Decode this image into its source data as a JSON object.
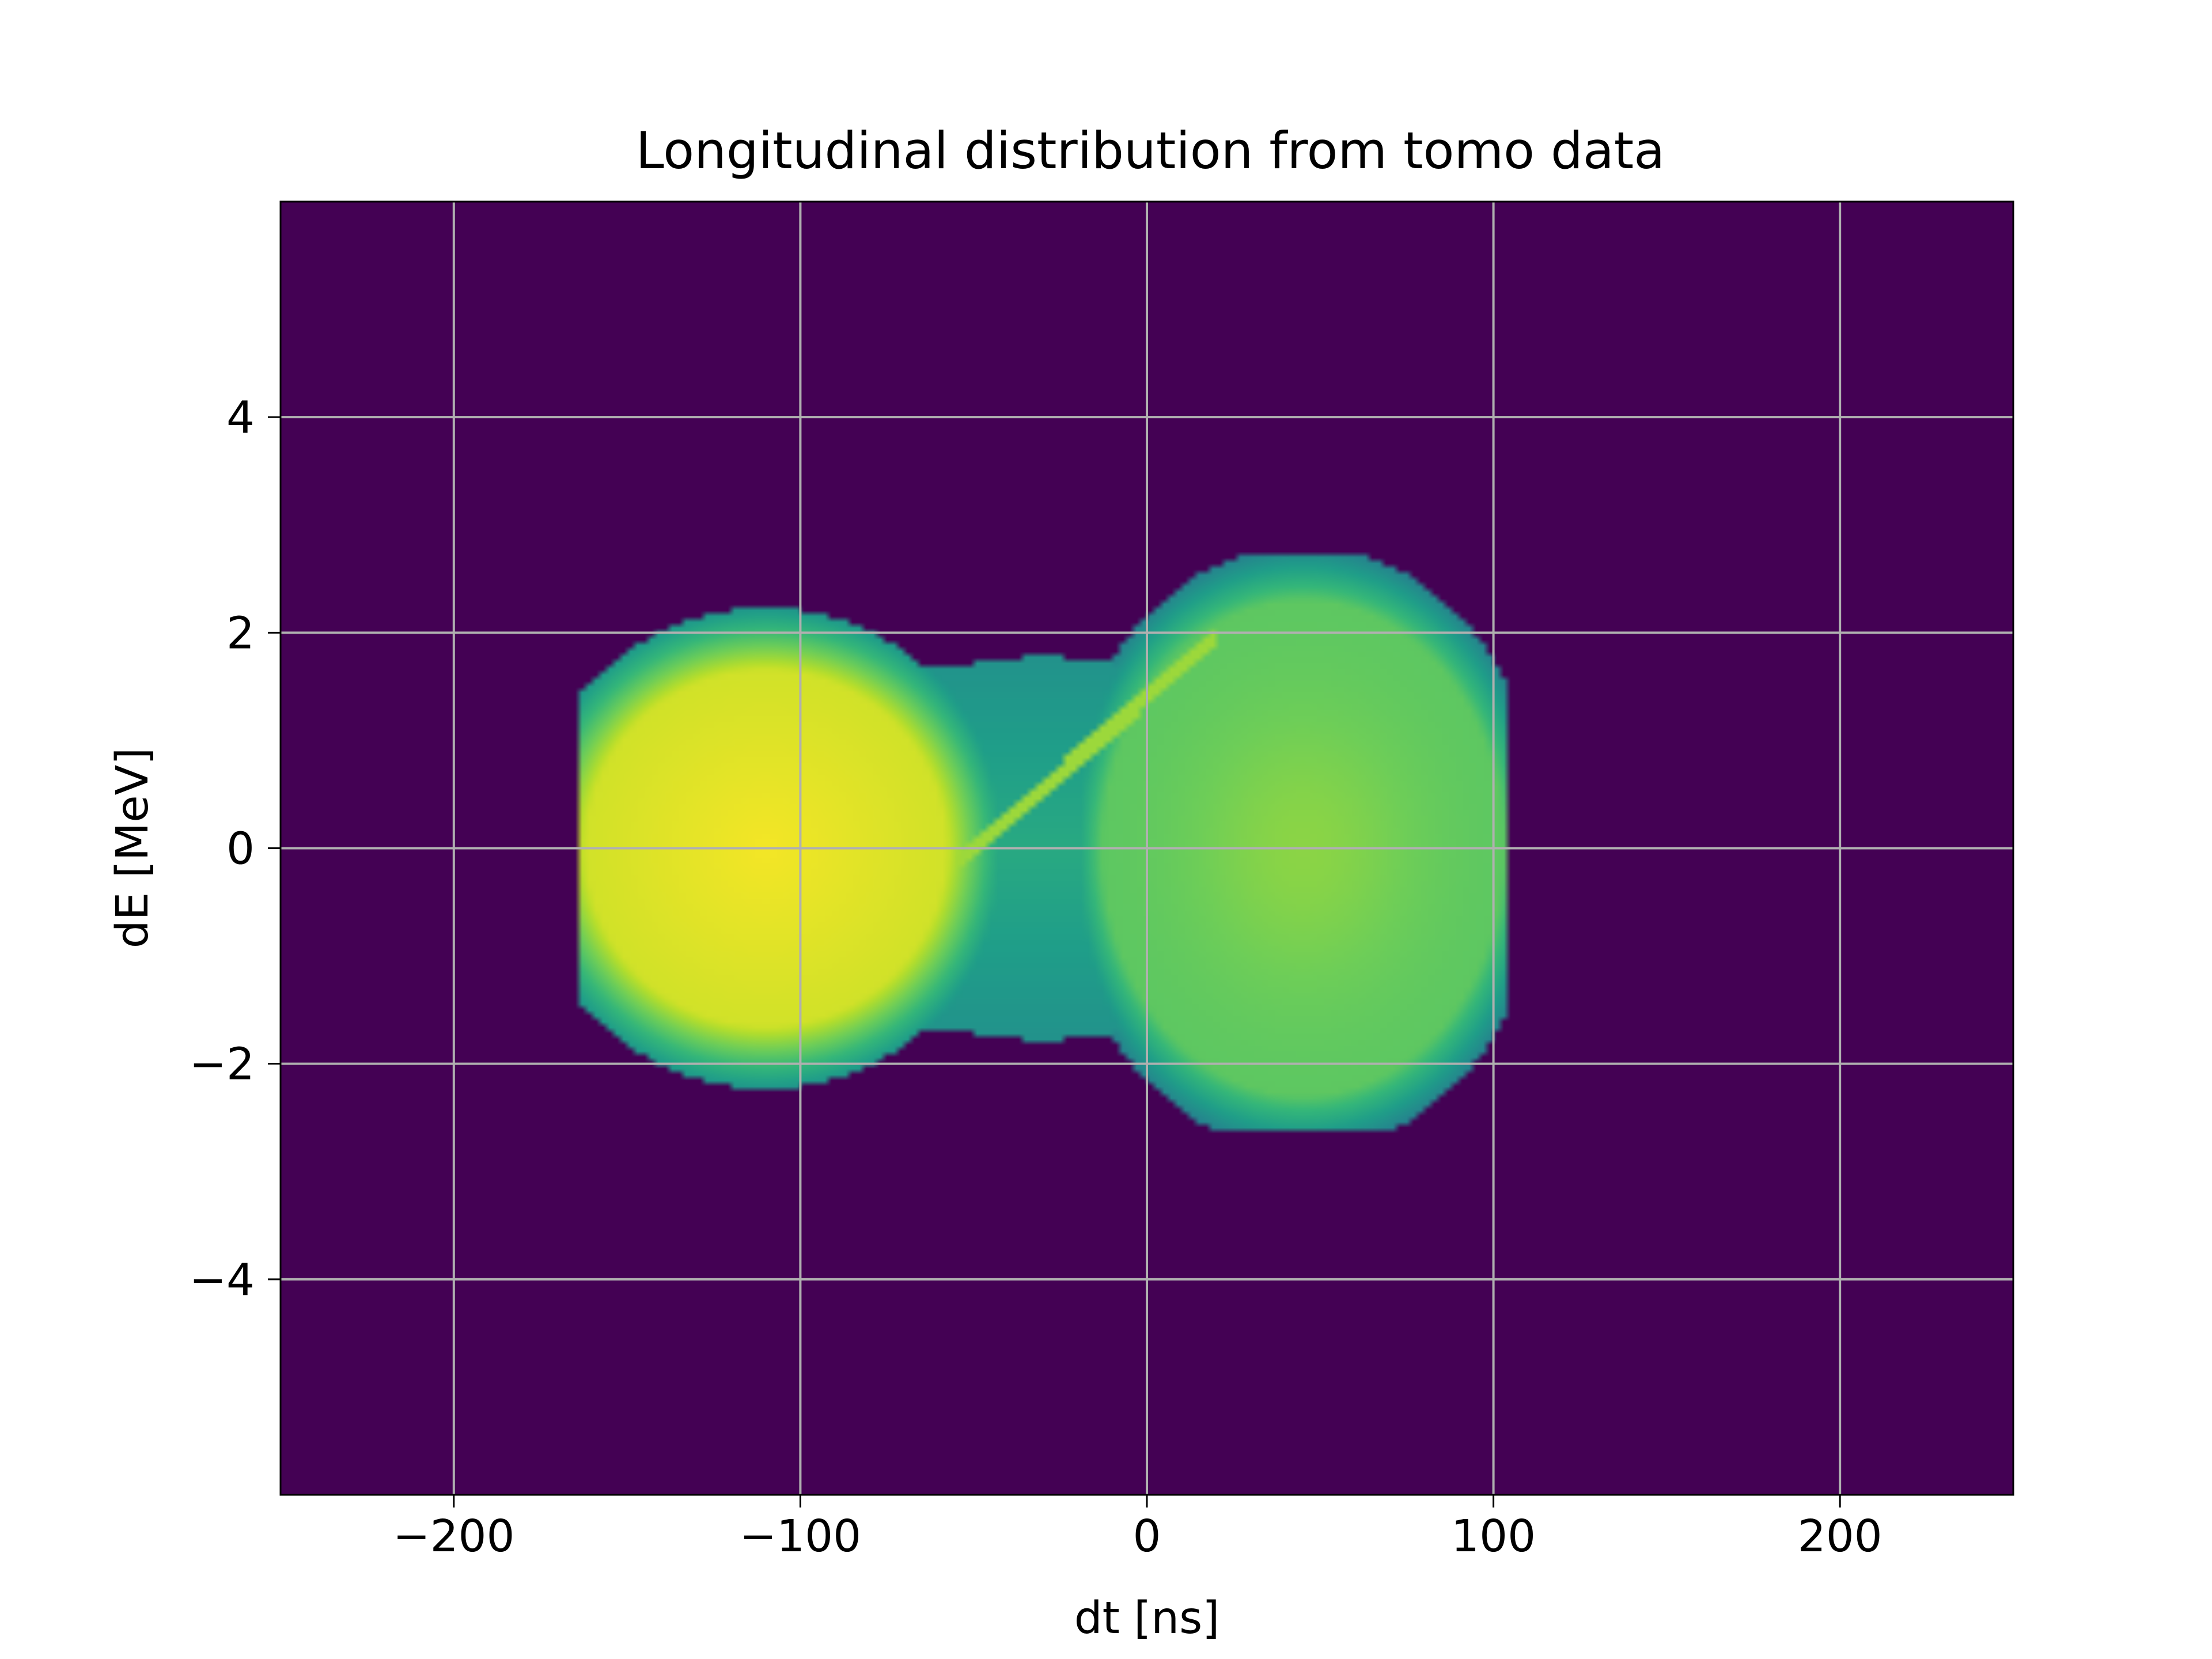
{
  "chart_data": {
    "type": "heatmap",
    "title": "Longitudinal distribution from tomo data",
    "xlabel": "dt [ns]",
    "ylabel": "dE [MeV]",
    "xlim": [
      -250,
      250
    ],
    "ylim": [
      -6,
      6
    ],
    "xticks": [
      -200,
      -100,
      0,
      100,
      200
    ],
    "xtick_labels": [
      "−200",
      "−100",
      "0",
      "100",
      "200"
    ],
    "yticks": [
      -4,
      -2,
      0,
      2,
      4
    ],
    "ytick_labels": [
      "−4",
      "−2",
      "0",
      "2",
      "4"
    ],
    "grid": true,
    "colormap": "viridis",
    "background_color": "#440154",
    "features": [
      {
        "region": "left bucket core",
        "dt_center": -115,
        "dE_center": 0.1,
        "dt_halfwidth": 40,
        "dE_halfwidth": 1.4,
        "relative_density": 0.95
      },
      {
        "region": "right bucket core",
        "dt_center": 45,
        "dE_center": 0.0,
        "dt_halfwidth": 50,
        "dE_halfwidth": 2.0,
        "relative_density": 0.65
      }
    ],
    "extent": {
      "dt": [
        -163,
        103
      ],
      "dE": [
        -2.6,
        2.7
      ]
    }
  }
}
